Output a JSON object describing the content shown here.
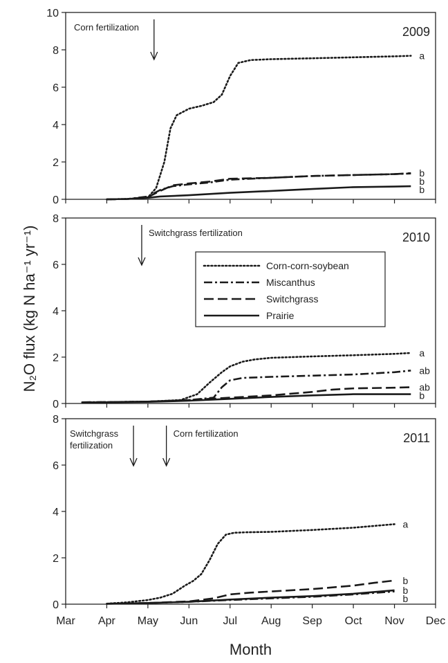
{
  "chart_data": {
    "type": "line",
    "ylabel": "N₂O flux (kg N ha⁻¹ yr⁻¹)",
    "xlabel": "Month",
    "x_ticks": [
      "Mar",
      "Apr",
      "May",
      "Jun",
      "Jul",
      "Aug",
      "Sep",
      "Oct",
      "Nov",
      "Dec"
    ],
    "xlim": [
      "Mar",
      "Dec"
    ],
    "legend": {
      "position": "center-right of 2010 panel",
      "entries": [
        "Corn-corn-soybean",
        "Miscanthus",
        "Switchgrass",
        "Prairie"
      ]
    },
    "series_styles": {
      "Corn-corn-soybean": "dotted",
      "Miscanthus": "dash-dot",
      "Switchgrass": "dashed",
      "Prairie": "solid"
    },
    "panels": [
      {
        "year": "2009",
        "ylim": [
          0,
          10
        ],
        "y_ticks": [
          "0",
          "2",
          "4",
          "6",
          "8",
          "10"
        ],
        "annotations": [
          {
            "text_lines": [
              "Corn fertilization"
            ],
            "month": 5.15
          }
        ],
        "series": [
          {
            "name": "Corn-corn-soybean",
            "x": [
              4.0,
              4.5,
              5.0,
              5.2,
              5.4,
              5.55,
              5.7,
              6.0,
              6.3,
              6.6,
              6.8,
              7.0,
              7.2,
              7.5,
              8.0,
              9.0,
              10.0,
              11.0,
              11.4
            ],
            "y": [
              0,
              0.02,
              0.1,
              0.6,
              2.0,
              3.8,
              4.5,
              4.85,
              5.0,
              5.2,
              5.6,
              6.6,
              7.3,
              7.45,
              7.5,
              7.55,
              7.6,
              7.65,
              7.68
            ],
            "letter": "a"
          },
          {
            "name": "Miscanthus",
            "x": [
              4.0,
              4.5,
              5.0,
              5.3,
              5.6,
              6.0,
              6.5,
              7.0,
              8.0,
              9.0,
              10.0,
              11.0,
              11.4
            ],
            "y": [
              0,
              0.02,
              0.15,
              0.5,
              0.7,
              0.8,
              0.9,
              1.05,
              1.15,
              1.25,
              1.3,
              1.35,
              1.38
            ],
            "letter": "b"
          },
          {
            "name": "Switchgrass",
            "x": [
              4.0,
              4.5,
              5.0,
              5.3,
              5.6,
              6.0,
              6.5,
              7.0,
              8.0,
              9.0,
              10.0,
              11.0,
              11.4
            ],
            "y": [
              0,
              0.02,
              0.12,
              0.45,
              0.75,
              0.85,
              0.95,
              1.1,
              1.15,
              1.25,
              1.3,
              1.35,
              1.4
            ],
            "letter": "b"
          },
          {
            "name": "Prairie",
            "x": [
              4.0,
              4.5,
              5.0,
              5.3,
              6.0,
              7.0,
              8.0,
              9.0,
              10.0,
              11.0,
              11.4
            ],
            "y": [
              0,
              0.02,
              0.08,
              0.15,
              0.22,
              0.35,
              0.45,
              0.55,
              0.65,
              0.68,
              0.7
            ],
            "letter": "b"
          }
        ]
      },
      {
        "year": "2010",
        "ylim": [
          0,
          8
        ],
        "y_ticks": [
          "0",
          "2",
          "4",
          "6",
          "8"
        ],
        "annotations": [
          {
            "text_lines": [
              "Switchgrass fertilization"
            ],
            "month": 4.85
          }
        ],
        "series": [
          {
            "name": "Corn-corn-soybean",
            "x": [
              3.4,
              4.0,
              5.0,
              5.8,
              6.2,
              6.5,
              6.8,
              7.0,
              7.3,
              7.6,
              8.0,
              9.0,
              10.0,
              11.0,
              11.4
            ],
            "y": [
              0.05,
              0.06,
              0.08,
              0.15,
              0.4,
              0.9,
              1.35,
              1.6,
              1.8,
              1.9,
              1.97,
              2.03,
              2.08,
              2.14,
              2.18
            ],
            "letter": "a"
          },
          {
            "name": "Miscanthus",
            "x": [
              3.4,
              4.0,
              5.0,
              6.0,
              6.6,
              6.8,
              7.0,
              7.3,
              8.0,
              9.0,
              10.0,
              11.0,
              11.4
            ],
            "y": [
              0.05,
              0.06,
              0.08,
              0.15,
              0.25,
              0.7,
              1.0,
              1.1,
              1.15,
              1.2,
              1.25,
              1.35,
              1.42
            ],
            "letter": "ab"
          },
          {
            "name": "Switchgrass",
            "x": [
              3.4,
              4.0,
              5.0,
              6.0,
              7.0,
              8.0,
              9.0,
              9.5,
              10.0,
              11.0,
              11.4
            ],
            "y": [
              0.05,
              0.06,
              0.08,
              0.15,
              0.25,
              0.35,
              0.5,
              0.6,
              0.65,
              0.68,
              0.7
            ],
            "letter": "ab"
          },
          {
            "name": "Prairie",
            "x": [
              3.4,
              4.0,
              5.0,
              6.0,
              7.0,
              8.0,
              9.0,
              10.0,
              11.0,
              11.4
            ],
            "y": [
              0.04,
              0.05,
              0.07,
              0.12,
              0.2,
              0.28,
              0.35,
              0.4,
              0.4,
              0.4
            ],
            "letter": "b"
          }
        ]
      },
      {
        "year": "2011",
        "ylim": [
          0,
          8
        ],
        "y_ticks": [
          "0",
          "2",
          "4",
          "6",
          "8"
        ],
        "annotations": [
          {
            "text_lines": [
              "Switchgrass",
              "fertilization"
            ],
            "month": 4.65
          },
          {
            "text_lines": [
              "Corn fertilization"
            ],
            "month": 5.45
          }
        ],
        "series": [
          {
            "name": "Corn-corn-soybean",
            "x": [
              4.0,
              4.5,
              5.0,
              5.3,
              5.6,
              5.9,
              6.1,
              6.3,
              6.5,
              6.7,
              6.9,
              7.1,
              7.4,
              8.0,
              9.0,
              10.0,
              11.0
            ],
            "y": [
              0.02,
              0.08,
              0.18,
              0.28,
              0.45,
              0.8,
              1.0,
              1.3,
              1.9,
              2.6,
              3.0,
              3.08,
              3.1,
              3.12,
              3.2,
              3.3,
              3.45
            ],
            "letter": "a"
          },
          {
            "name": "Switchgrass",
            "x": [
              4.0,
              4.5,
              5.0,
              6.0,
              6.6,
              7.0,
              7.5,
              8.0,
              9.0,
              10.0,
              10.5,
              11.0
            ],
            "y": [
              0.02,
              0.03,
              0.05,
              0.12,
              0.25,
              0.42,
              0.5,
              0.55,
              0.65,
              0.8,
              0.92,
              1.02
            ],
            "letter": "b"
          },
          {
            "name": "Prairie",
            "x": [
              4.0,
              4.5,
              5.0,
              6.0,
              7.0,
              8.0,
              9.0,
              10.0,
              11.0
            ],
            "y": [
              0.02,
              0.03,
              0.05,
              0.1,
              0.2,
              0.28,
              0.35,
              0.45,
              0.6
            ],
            "letter": "b"
          },
          {
            "name": "Miscanthus",
            "x": [
              4.0,
              4.5,
              5.0,
              6.0,
              7.0,
              8.0,
              9.0,
              10.0,
              11.0
            ],
            "y": [
              0.02,
              0.03,
              0.05,
              0.1,
              0.18,
              0.25,
              0.32,
              0.42,
              0.55
            ],
            "letter": "b"
          }
        ]
      }
    ]
  },
  "styles": {
    "line_color": "#1a1a1a",
    "axis_color": "#222222"
  }
}
